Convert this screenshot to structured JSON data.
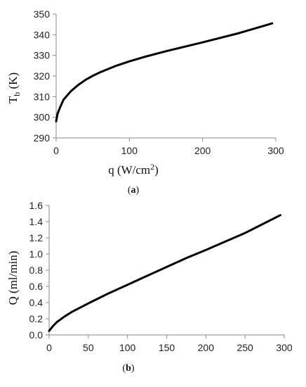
{
  "chart_data": [
    {
      "type": "line",
      "panel_label": {
        "open": "(",
        "letter": "a",
        "close": ")"
      },
      "xlabel": {
        "pre": "q (W/cm",
        "sup": "2",
        "post": ")"
      },
      "ylabel": {
        "main": "T",
        "sub": "b",
        "post": " (K)"
      },
      "xlim": [
        0,
        300
      ],
      "ylim": [
        290,
        350
      ],
      "xticks": [
        0,
        100,
        200,
        300
      ],
      "yticks": [
        290,
        300,
        310,
        320,
        330,
        340,
        350
      ],
      "grid": false,
      "series": [
        {
          "color": "#000000",
          "x": [
            0,
            2,
            5,
            10,
            20,
            30,
            40,
            50,
            60,
            80,
            100,
            120,
            150,
            200,
            250,
            295
          ],
          "y": [
            298,
            301.8,
            304.5,
            308.5,
            312.6,
            315.6,
            318.1,
            320.1,
            321.8,
            324.7,
            327.1,
            329.2,
            332.0,
            336.3,
            340.8,
            345.5
          ]
        }
      ]
    },
    {
      "type": "line",
      "panel_label": {
        "open": "(",
        "letter": "b",
        "close": ")"
      },
      "xlabel": "",
      "ylabel": "Q (ml/min)",
      "xlim": [
        0,
        300
      ],
      "ylim": [
        0,
        1.6
      ],
      "xticks": [
        0,
        50,
        100,
        150,
        200,
        250,
        300
      ],
      "yticks": [
        0.0,
        0.2,
        0.4,
        0.6,
        0.8,
        1.0,
        1.2,
        1.4,
        1.6
      ],
      "grid": false,
      "series": [
        {
          "color": "#000000",
          "x": [
            0,
            5,
            10,
            20,
            30,
            50,
            75,
            100,
            125,
            150,
            175,
            200,
            250,
            295
          ],
          "y": [
            0.05,
            0.11,
            0.16,
            0.23,
            0.29,
            0.39,
            0.51,
            0.62,
            0.73,
            0.84,
            0.95,
            1.05,
            1.26,
            1.48
          ]
        }
      ]
    }
  ]
}
